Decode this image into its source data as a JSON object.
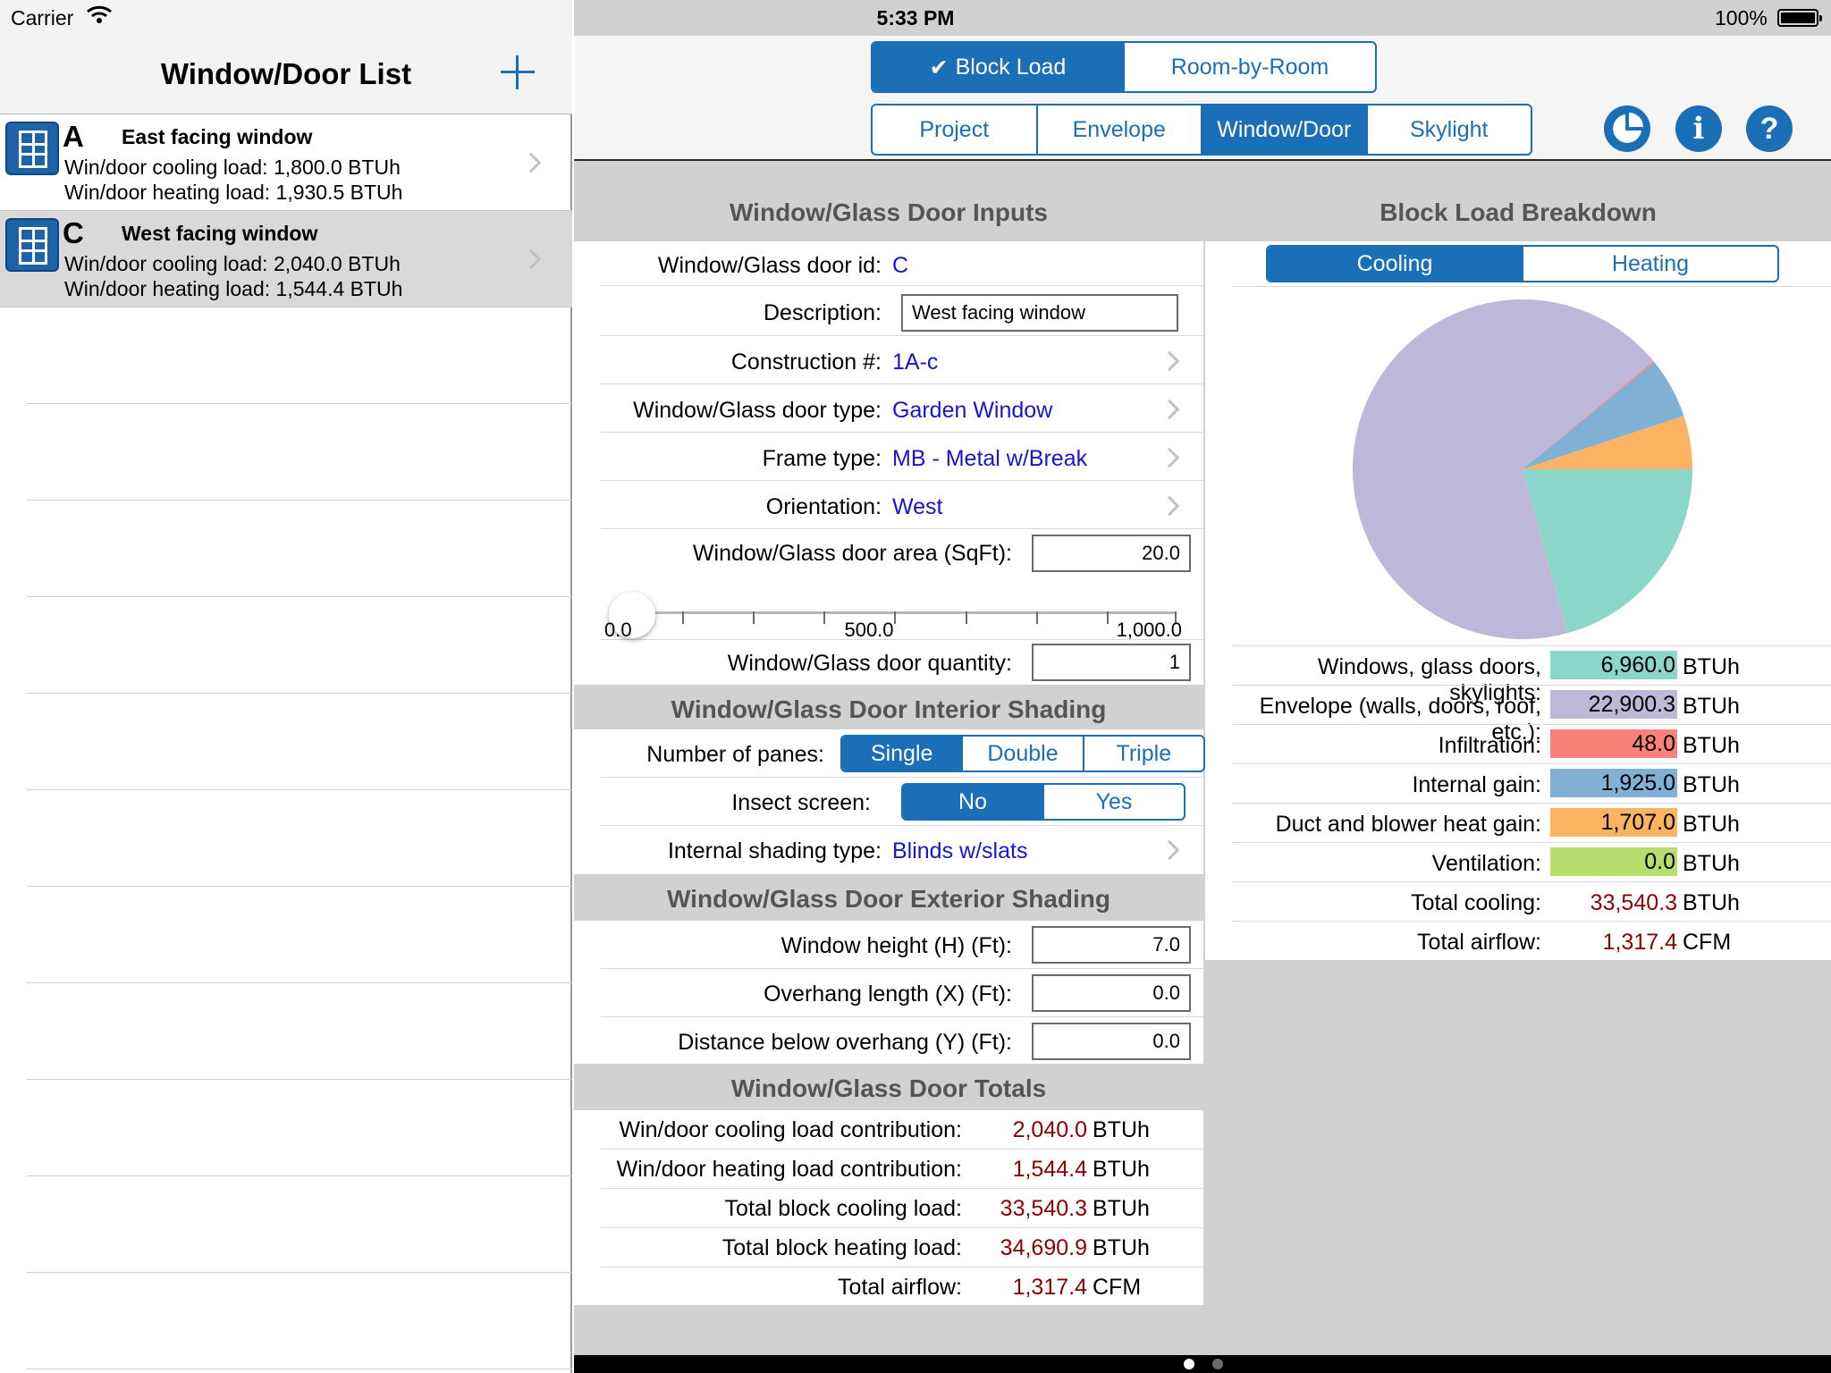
{
  "status": {
    "carrier": "Carrier",
    "time": "5:33 PM",
    "battery": "100%"
  },
  "master": {
    "title": "Window/Door List",
    "items": [
      {
        "letter": "A",
        "name": "East facing window",
        "cooling": "Win/door cooling load: 1,800.0 BTUh",
        "heating": "Win/door heating load: 1,930.5 BTUh"
      },
      {
        "letter": "C",
        "name": "West facing window",
        "cooling": "Win/door cooling load: 2,040.0 BTUh",
        "heating": "Win/door heating load: 1,544.4 BTUh"
      }
    ]
  },
  "nav": {
    "mode_tabs": [
      "Block Load",
      "Room-by-Room"
    ],
    "section_tabs": [
      "Project",
      "Envelope",
      "Window/Door",
      "Skylight"
    ],
    "checkmark": "✔",
    "info_label": "i",
    "help_label": "?"
  },
  "inputs": {
    "header": "Window/Glass Door Inputs",
    "id_label": "Window/Glass door id:",
    "id_value": "C",
    "desc_label": "Description:",
    "desc_value": "West facing window",
    "construction_label": "Construction #:",
    "construction_value": "1A-c",
    "type_label": "Window/Glass door type:",
    "type_value": "Garden Window",
    "frame_label": "Frame type:",
    "frame_value": "MB - Metal w/Break",
    "orient_label": "Orientation:",
    "orient_value": "West",
    "area_label": "Window/Glass door area (SqFt):",
    "area_value": "20.0",
    "slider": {
      "min": "0.0",
      "mid": "500.0",
      "max": "1,000.0",
      "value": 20,
      "range_max": 1000
    },
    "qty_label": "Window/Glass door quantity:",
    "qty_value": "1"
  },
  "interior": {
    "header": "Window/Glass Door Interior Shading",
    "panes_label": "Number of panes:",
    "panes": [
      "Single",
      "Double",
      "Triple"
    ],
    "screen_label": "Insect screen:",
    "screen": [
      "No",
      "Yes"
    ],
    "shading_label": "Internal shading type:",
    "shading_value": "Blinds w/slats"
  },
  "exterior": {
    "header": "Window/Glass Door Exterior Shading",
    "height_label": "Window height (H) (Ft):",
    "height_value": "7.0",
    "overhang_label": "Overhang length (X) (Ft):",
    "overhang_value": "0.0",
    "distance_label": "Distance below overhang (Y) (Ft):",
    "distance_value": "0.0"
  },
  "totals": {
    "header": "Window/Glass Door Totals",
    "rows": [
      {
        "label": "Win/door cooling load contribution:",
        "value": "2,040.0",
        "unit": "BTUh"
      },
      {
        "label": "Win/door heating load contribution:",
        "value": "1,544.4",
        "unit": "BTUh"
      },
      {
        "label": "Total block cooling load:",
        "value": "33,540.3",
        "unit": "BTUh"
      },
      {
        "label": "Total block heating load:",
        "value": "34,690.9",
        "unit": "BTUh"
      },
      {
        "label": "Total airflow:",
        "value": "1,317.4",
        "unit": "CFM"
      }
    ]
  },
  "breakdown": {
    "header": "Block Load Breakdown",
    "tabs": [
      "Cooling",
      "Heating"
    ],
    "rows": [
      {
        "label": "Windows, glass doors, skylights:",
        "value": "6,960.0",
        "unit": "BTUh",
        "color": "#8bd6c8"
      },
      {
        "label": "Envelope (walls, doors, roof, etc.):",
        "value": "22,900.3",
        "unit": "BTUh",
        "color": "#bdb8d9"
      },
      {
        "label": "Infiltration:",
        "value": "48.0",
        "unit": "BTUh",
        "color": "#f8827a"
      },
      {
        "label": "Internal gain:",
        "value": "1,925.0",
        "unit": "BTUh",
        "color": "#80b0d3"
      },
      {
        "label": "Duct and blower heat gain:",
        "value": "1,707.0",
        "unit": "BTUh",
        "color": "#fbb361"
      },
      {
        "label": "Ventilation:",
        "value": "0.0",
        "unit": "BTUh",
        "color": "#b5de6c"
      }
    ],
    "total_cooling": {
      "label": "Total cooling:",
      "value": "33,540.3",
      "unit": "BTUh"
    },
    "total_airflow": {
      "label": "Total airflow:",
      "value": "1,317.4",
      "unit": "CFM"
    }
  },
  "chart_data": {
    "type": "pie",
    "categories": [
      "Windows, glass doors, skylights",
      "Envelope (walls, doors, roof, etc.)",
      "Infiltration",
      "Internal gain",
      "Duct and blower heat gain",
      "Ventilation"
    ],
    "values": [
      6960.0,
      22900.3,
      48.0,
      1925.0,
      1707.0,
      0.0
    ],
    "colors": [
      "#8bd6c8",
      "#bdb8d9",
      "#f8827a",
      "#80b0d3",
      "#fbb361",
      "#b5de6c"
    ]
  },
  "pager": {
    "pages": 2,
    "current": 0
  }
}
